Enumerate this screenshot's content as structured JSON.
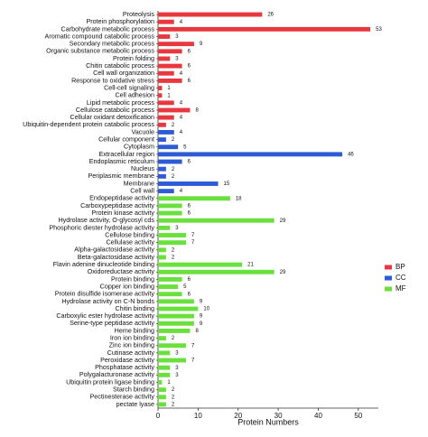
{
  "chart_data": {
    "type": "bar",
    "orientation": "horizontal",
    "x_label": "Protein Numbers",
    "categories": [
      "Proteolysis",
      "Protein phosphorylation",
      "Carbohydrate metabolic process",
      "Aromatic compound catabolic process",
      "Secondary metabolic process",
      "Organic substance metabolic process",
      "Protein folding",
      "Chitin catabolic process",
      "Cell wall organization",
      "Response to oxidative stress",
      "Cell-cell signaling",
      "Cell adhesion",
      "Lipid metabolic process",
      "Cellulose catabolic process",
      "Cellular oxidant detoxification",
      "Ubiquitin-dependent protein catabolic process",
      "Vacuole",
      "Cellular component",
      "Cytoplasm",
      "Extracellular region",
      "Endoplasmic reticulum",
      "Nucleus",
      "Periplasmic membrane",
      "Membrane",
      "Cell wall",
      "Endopeptidase activity",
      "Carboxypeptidase activity",
      "Protein kinase activity",
      "Hydrolase activity, O-glycosyl cds",
      "Phosphoric diester hydrolase activity",
      "Cellulose binding",
      "Cellulase activity",
      "Alpha-galactosidase activity",
      "Beta-galactosidase activity",
      "Flavin adenine dinucleotide binding",
      "Oxidoreductase activity",
      "Protein binding",
      "Copper ion binding",
      "Protein disulfide isomerase activity",
      "Hydrolase activity on C-N bonds",
      "Chitin binding",
      "Carboxylic ester hydrolase activity",
      "Serine-type peptidase activity",
      "Heme binding",
      "Iron ion binding",
      "Zinc ion binding",
      "Cutinase activity",
      "Peroxidase activity",
      "Phosphatase activity",
      "Polygalacturonase activity",
      "Ubiquitin protein ligase binding",
      "Starch binding",
      "Pectinesterase activity",
      "pectate lyase"
    ],
    "series": [
      {
        "name": "BP",
        "color": "#e8383d",
        "values": [
          26,
          4,
          53,
          3,
          9,
          6,
          3,
          6,
          4,
          6,
          1,
          1,
          4,
          8,
          4,
          2,
          null,
          null,
          null,
          null,
          null,
          null,
          null,
          null,
          null,
          null,
          null,
          null,
          null,
          null,
          null,
          null,
          null,
          null,
          null,
          null,
          null,
          null,
          null,
          null,
          null,
          null,
          null,
          null,
          null,
          null,
          null,
          null,
          null,
          null,
          null,
          null,
          null,
          null
        ]
      },
      {
        "name": "CC",
        "color": "#2d5bd6",
        "values": [
          null,
          null,
          null,
          null,
          null,
          null,
          null,
          null,
          null,
          null,
          null,
          null,
          null,
          null,
          null,
          null,
          4,
          2,
          5,
          46,
          6,
          2,
          2,
          15,
          4,
          null,
          null,
          null,
          null,
          null,
          null,
          null,
          null,
          null,
          null,
          null,
          null,
          null,
          null,
          null,
          null,
          null,
          null,
          null,
          null,
          null,
          null,
          null,
          null,
          null,
          null,
          null,
          null,
          null
        ]
      },
      {
        "name": "MF",
        "color": "#6ae03c",
        "values": [
          null,
          null,
          null,
          null,
          null,
          null,
          null,
          null,
          null,
          null,
          null,
          null,
          null,
          null,
          null,
          null,
          null,
          null,
          null,
          null,
          null,
          null,
          null,
          null,
          null,
          18,
          6,
          6,
          29,
          3,
          7,
          7,
          2,
          2,
          21,
          29,
          6,
          5,
          6,
          9,
          10,
          9,
          9,
          8,
          2,
          7,
          3,
          7,
          3,
          3,
          1,
          2,
          2,
          2
        ]
      }
    ],
    "xlim": [
      0,
      55
    ],
    "xticks": [
      0,
      10,
      20,
      30,
      40,
      50
    ],
    "legend": "right"
  }
}
